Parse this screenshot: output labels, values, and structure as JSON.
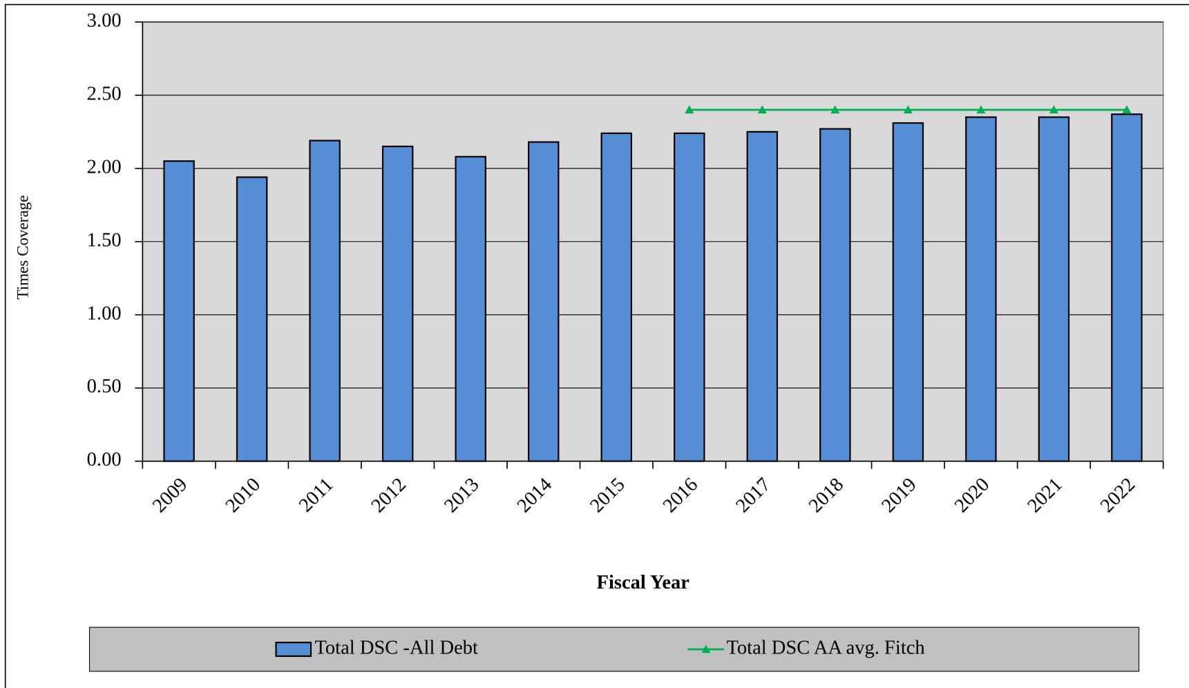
{
  "chart_data": {
    "type": "bar",
    "categories": [
      "2009",
      "2010",
      "2011",
      "2012",
      "2013",
      "2014",
      "2015",
      "2016",
      "2017",
      "2018",
      "2019",
      "2020",
      "2021",
      "2022"
    ],
    "series": [
      {
        "name": "Total DSC -All Debt",
        "type": "bar",
        "color": "#558ed5",
        "values": [
          2.05,
          1.94,
          2.19,
          2.15,
          2.08,
          2.18,
          2.24,
          2.24,
          2.25,
          2.27,
          2.31,
          2.35,
          2.35,
          2.37
        ]
      },
      {
        "name": "Total DSC AA avg. Fitch",
        "type": "line",
        "color": "#00b050",
        "values": [
          null,
          null,
          null,
          null,
          null,
          null,
          null,
          2.4,
          2.4,
          2.4,
          2.4,
          2.4,
          2.4,
          2.4
        ]
      }
    ],
    "x_label": "Fiscal Year",
    "y_label": "Times Coverage",
    "ylim": [
      0,
      3
    ],
    "yticks": [
      {
        "value": 0,
        "label": "0.00"
      },
      {
        "value": 0.5,
        "label": "0.50"
      },
      {
        "value": 1,
        "label": "1.00"
      },
      {
        "value": 1.5,
        "label": "1.50"
      },
      {
        "value": 2,
        "label": "2.00"
      },
      {
        "value": 2.5,
        "label": "2.50"
      },
      {
        "value": 3,
        "label": "3.00"
      }
    ],
    "grid": true,
    "legend": "bottom"
  }
}
